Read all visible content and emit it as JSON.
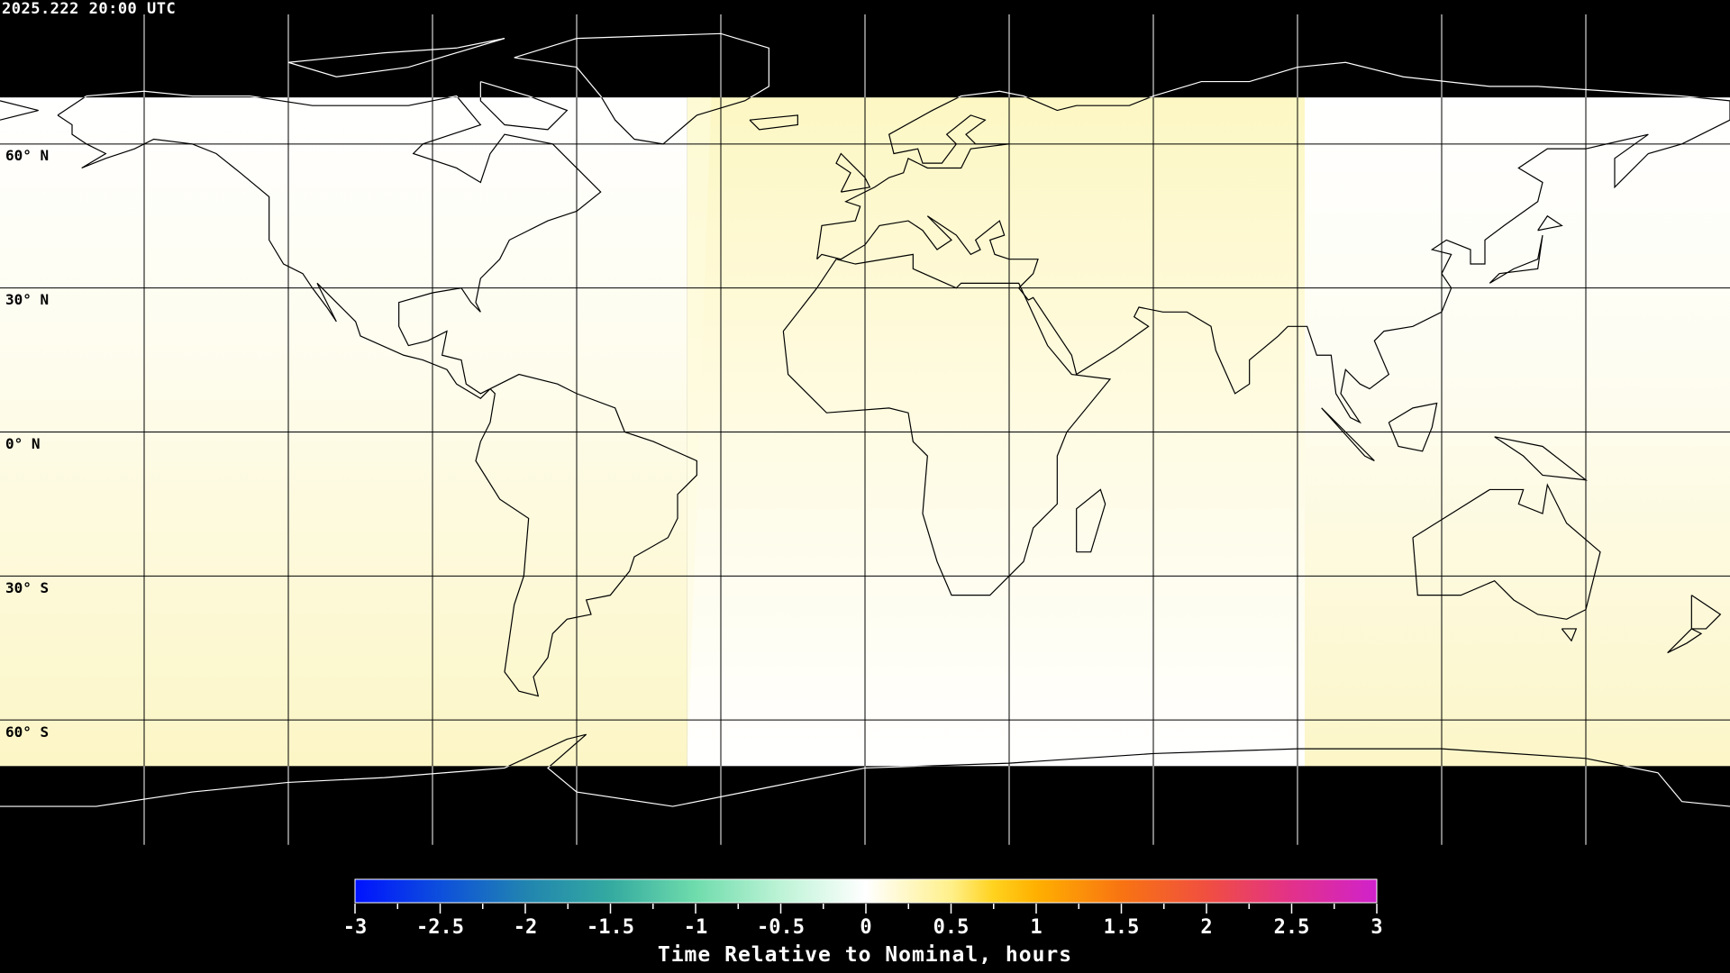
{
  "header": {
    "timestamp": "2025.222 20:00 UTC"
  },
  "map": {
    "projection": "equirectangular",
    "lon_range": [
      -180,
      180
    ],
    "lat_range": [
      -90,
      90
    ],
    "grid_spacing_deg": 30,
    "lat_labels": [
      "60° N",
      "30° N",
      "0° N",
      "30° S",
      "60° S"
    ],
    "colors": {
      "no_data": "#000000",
      "pale_yellow": "#fdf8cc",
      "white": "#ffffff",
      "coastline_light": "#000000",
      "coastline_dark": "#ffffff"
    }
  },
  "colorbar": {
    "title": "Time Relative to Nominal, hours",
    "min": -3,
    "max": 3,
    "tick_labels": [
      "-3",
      "-2.5",
      "-2",
      "-1.5",
      "-1",
      "-0.5",
      "0",
      "0.5",
      "1",
      "1.5",
      "2",
      "2.5",
      "3"
    ],
    "stops": [
      {
        "v": -3,
        "c": "#0012ff"
      },
      {
        "v": -2.5,
        "c": "#0d4fdc"
      },
      {
        "v": -2,
        "c": "#2184b0"
      },
      {
        "v": -1.5,
        "c": "#34aaa0"
      },
      {
        "v": -1,
        "c": "#6fdcac"
      },
      {
        "v": -0.5,
        "c": "#bdf3d6"
      },
      {
        "v": 0,
        "c": "#ffffff"
      },
      {
        "v": 0.5,
        "c": "#fff08a"
      },
      {
        "v": 0.75,
        "c": "#ffd21e"
      },
      {
        "v": 1,
        "c": "#ffb000"
      },
      {
        "v": 1.5,
        "c": "#f87412"
      },
      {
        "v": 2,
        "c": "#f04f40"
      },
      {
        "v": 2.5,
        "c": "#e2318a"
      },
      {
        "v": 3,
        "c": "#d022cc"
      }
    ]
  }
}
